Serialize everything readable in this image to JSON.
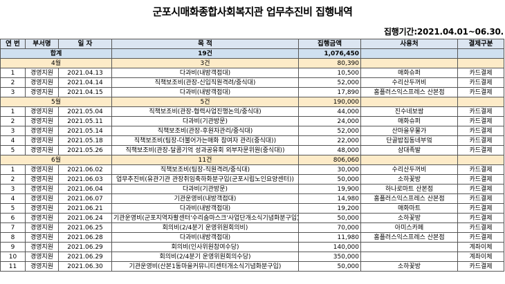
{
  "title": "군포시매화종합사회복지관 업무추진비 집행내역",
  "period": "집행기간:2021.04.01~06.30.",
  "headers": {
    "no": "연 번",
    "dept": "부서명",
    "date": "일  자",
    "purpose": "목   적",
    "amount": "집행금액",
    "place": "사용처",
    "pay": "결제구분"
  },
  "total": {
    "label": "합계",
    "count": "19건",
    "amount": "1,076,450"
  },
  "months": [
    {
      "label": "4월",
      "count": "3건",
      "amount": "80,390",
      "rows": [
        {
          "no": "1",
          "dept": "경영지원",
          "date": "2021.04.13",
          "purpose": "다과비(내방객접대)",
          "amount": "10,500",
          "place": "매화슈퍼",
          "pay": "카드결제"
        },
        {
          "no": "2",
          "dept": "경영지원",
          "date": "2021.04.14",
          "purpose": "직책보조비(관장-신입직원격려/중식대)",
          "amount": "52,000",
          "place": "수리산두꺼비",
          "pay": "카드결제"
        },
        {
          "no": "3",
          "dept": "경영지원",
          "date": "2021.04.15",
          "purpose": "다과비(내방객접대)",
          "amount": "17,890",
          "place": "홈플러스익스프레스 산본점",
          "pay": "카드결제"
        }
      ]
    },
    {
      "label": "5월",
      "count": "5건",
      "amount": "190,000",
      "rows": [
        {
          "no": "1",
          "dept": "경영지원",
          "date": "2021.05.04",
          "purpose": "직책보조비(관장-협력사업진행논의/중식대)",
          "amount": "44,000",
          "place": "진수네보쌈",
          "pay": "카드결제"
        },
        {
          "no": "2",
          "dept": "경영지원",
          "date": "2021.05.11",
          "purpose": "다과비(기관방문)",
          "amount": "24,000",
          "place": "매화슈퍼",
          "pay": "카드결제"
        },
        {
          "no": "3",
          "dept": "경영지원",
          "date": "2021.05.14",
          "purpose": "직책보조비(관장-후원자관리/중식대)",
          "amount": "52,000",
          "place": "산마을우물가",
          "pay": "카드결제"
        },
        {
          "no": "4",
          "dept": "경영지원",
          "date": "2021.05.18",
          "purpose": "직책보조비(팀장-더불어가는매화 참여자 관리(중식대))",
          "amount": "22,000",
          "place": "단골밥집동네부엌",
          "pay": "카드결제"
        },
        {
          "no": "5",
          "dept": "경영지원",
          "date": "2021.05.26",
          "purpose": "직책보조비(관장-달콤기억 성과공유회 외부자문위원(중식대))",
          "amount": "48,000",
          "place": "삼대족발",
          "pay": "카드결제"
        }
      ]
    },
    {
      "label": "6월",
      "count": "11건",
      "amount": "806,060",
      "rows": [
        {
          "no": "1",
          "dept": "경영지원",
          "date": "2021.06.02",
          "purpose": "직책보조비(팀장-직원격려/중식대)",
          "amount": "30,000",
          "place": "수리산두꺼비",
          "pay": "카드결제"
        },
        {
          "no": "2",
          "dept": "경영지원",
          "date": "2021.06.03",
          "purpose": "업무추진비(유관기관 관장취임축하화분구입(군포시립노인요양센터))",
          "amount": "50,000",
          "place": "소하꽃방",
          "pay": "카드결제"
        },
        {
          "no": "3",
          "dept": "경영지원",
          "date": "2021.06.04",
          "purpose": "다과비(기관방문)",
          "amount": "19,900",
          "place": "하나로마트 산본점",
          "pay": "카드결제"
        },
        {
          "no": "4",
          "dept": "경영지원",
          "date": "2021.06.07",
          "purpose": "기관운영비(내방객접대)",
          "amount": "14,980",
          "place": "홈플러스익스프레스 산본점",
          "pay": "카드결제"
        },
        {
          "no": "5",
          "dept": "경영지원",
          "date": "2021.06.21",
          "purpose": "다과비(내방객접대)",
          "amount": "19,200",
          "place": "매화마트",
          "pay": "카드결제"
        },
        {
          "no": "6",
          "dept": "경영지원",
          "date": "2021.06.24",
          "purpose": "기관운영비(군포지역자활센터'수리숨마스크'사업단개소식기념화분구입)",
          "amount": "50,000",
          "place": "소하꽃방",
          "pay": "카드결제"
        },
        {
          "no": "7",
          "dept": "경영지원",
          "date": "2021.06.25",
          "purpose": "회의비(2/4분기 운영위원회의비)",
          "amount": "70,000",
          "place": "아미스카페",
          "pay": "카드결제"
        },
        {
          "no": "8",
          "dept": "경영지원",
          "date": "2021.06.28",
          "purpose": "다과비(내방객접대)",
          "amount": "11,980",
          "place": "홈플러스익스프레스 산본점",
          "pay": "카드결제"
        },
        {
          "no": "9",
          "dept": "경영지원",
          "date": "2021.06.29",
          "purpose": "회의비(인사위원참여수당)",
          "amount": "140,000",
          "place": "",
          "pay": "계좌이체"
        },
        {
          "no": "10",
          "dept": "경영지원",
          "date": "2021.06.29",
          "purpose": "회의비(2/4분기 운영위원회의수당)",
          "amount": "350,000",
          "place": "",
          "pay": "계좌이체"
        },
        {
          "no": "11",
          "dept": "경영지원",
          "date": "2021.06.30",
          "purpose": "기관운영비(산본1동마을커뮤니티센터개소식기념화분구입)",
          "amount": "50,000",
          "place": "소하꽃방",
          "pay": "카드결제"
        }
      ]
    }
  ]
}
